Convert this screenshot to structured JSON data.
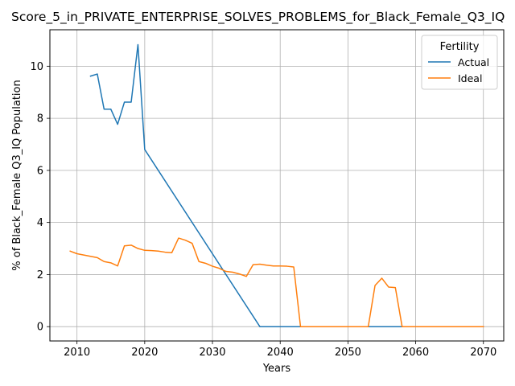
{
  "chart_data": {
    "type": "line",
    "title": "Score_5_in_PRIVATE_ENTERPRISE_SOLVES_PROBLEMS_for_Black_Female_Q3_IQ",
    "xlabel": "Years",
    "ylabel": "% of Black_Female Q3_IQ Population",
    "xlim": [
      2006,
      2073
    ],
    "ylim": [
      -0.55,
      11.4
    ],
    "xticks": [
      2010,
      2020,
      2030,
      2040,
      2050,
      2060,
      2070
    ],
    "yticks": [
      0,
      2,
      4,
      6,
      8,
      10
    ],
    "grid": true,
    "legend": {
      "title": "Fertility",
      "placement": "top-right"
    },
    "series": [
      {
        "name": "Actual",
        "color": "#1f77b4",
        "points": [
          [
            2012,
            9.62
          ],
          [
            2013,
            9.7
          ],
          [
            2014,
            8.35
          ],
          [
            2015,
            8.35
          ],
          [
            2016,
            7.77
          ],
          [
            2017,
            8.62
          ],
          [
            2018,
            8.62
          ],
          [
            2019,
            10.83
          ],
          [
            2020,
            6.8
          ],
          [
            2037,
            0.0
          ],
          [
            2038,
            0.0
          ],
          [
            2070,
            0.0
          ]
        ]
      },
      {
        "name": "Ideal",
        "color": "#ff7f0e",
        "points": [
          [
            2009,
            2.9
          ],
          [
            2010,
            2.8
          ],
          [
            2011,
            2.75
          ],
          [
            2012,
            2.7
          ],
          [
            2013,
            2.65
          ],
          [
            2014,
            2.5
          ],
          [
            2015,
            2.45
          ],
          [
            2016,
            2.33
          ],
          [
            2017,
            3.1
          ],
          [
            2018,
            3.13
          ],
          [
            2019,
            3.0
          ],
          [
            2020,
            2.93
          ],
          [
            2021,
            2.92
          ],
          [
            2022,
            2.9
          ],
          [
            2023,
            2.86
          ],
          [
            2024,
            2.84
          ],
          [
            2025,
            3.4
          ],
          [
            2026,
            3.32
          ],
          [
            2027,
            3.2
          ],
          [
            2028,
            2.5
          ],
          [
            2029,
            2.43
          ],
          [
            2030,
            2.32
          ],
          [
            2031,
            2.24
          ],
          [
            2032,
            2.12
          ],
          [
            2033,
            2.09
          ],
          [
            2034,
            2.02
          ],
          [
            2035,
            1.93
          ],
          [
            2036,
            2.38
          ],
          [
            2037,
            2.4
          ],
          [
            2038,
            2.36
          ],
          [
            2039,
            2.33
          ],
          [
            2040,
            2.33
          ],
          [
            2041,
            2.32
          ],
          [
            2042,
            2.29
          ],
          [
            2043,
            0.0
          ],
          [
            2053,
            0.0
          ],
          [
            2054,
            1.58
          ],
          [
            2055,
            1.86
          ],
          [
            2056,
            1.52
          ],
          [
            2057,
            1.5
          ],
          [
            2058,
            0.0
          ],
          [
            2070,
            0.0
          ]
        ]
      }
    ]
  }
}
